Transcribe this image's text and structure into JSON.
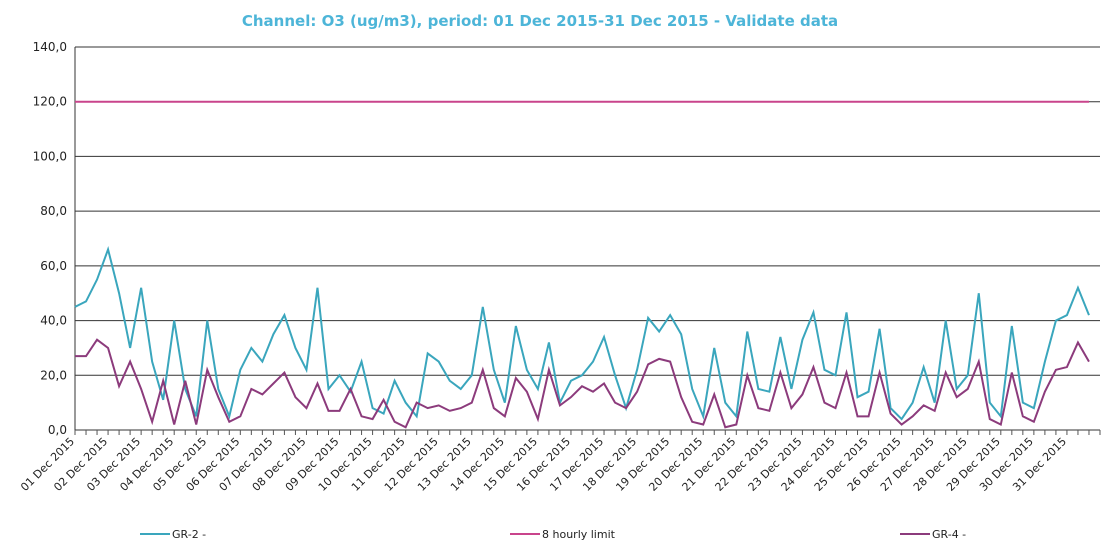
{
  "chart_data": {
    "type": "line",
    "title": "Channel: O3 (ug/m3), period: 01 Dec 2015-31 Dec 2015 - Validate data",
    "categories": [
      "01 Dec 2015",
      null,
      null,
      "02 Dec 2015",
      null,
      null,
      "03 Dec 2015",
      null,
      null,
      "04 Dec 2015",
      null,
      null,
      "05 Dec 2015",
      null,
      null,
      "06 Dec 2015",
      null,
      null,
      "07 Dec 2015",
      null,
      null,
      "08 Dec 2015",
      null,
      null,
      "09 Dec 2015",
      null,
      null,
      "10 Dec 2015",
      null,
      null,
      "11 Dec 2015",
      null,
      null,
      "12 Dec 2015",
      null,
      null,
      "13 Dec 2015",
      null,
      null,
      "14 Dec 2015",
      null,
      null,
      "15 Dec 2015",
      null,
      null,
      "16 Dec 2015",
      null,
      null,
      "17 Dec 2015",
      null,
      null,
      "18 Dec 2015",
      null,
      null,
      "19 Dec 2015",
      null,
      null,
      "20 Dec 2015",
      null,
      null,
      "21 Dec 2015",
      null,
      null,
      "22 Dec 2015",
      null,
      null,
      "23 Dec 2015",
      null,
      null,
      "24 Dec 2015",
      null,
      null,
      "25 Dec 2015",
      null,
      null,
      "26 Dec 2015",
      null,
      null,
      "27 Dec 2015",
      null,
      null,
      "28 Dec 2015",
      null,
      null,
      "29 Dec 2015",
      null,
      null,
      "30 Dec 2015",
      null,
      null,
      "31 Dec 2015",
      null,
      null
    ],
    "series": [
      {
        "name": "GR-2 -",
        "color": "#3aa6bd",
        "values": [
          45,
          47,
          55,
          66,
          50,
          30,
          52,
          25,
          11,
          40,
          15,
          5,
          40,
          15,
          5,
          22,
          30,
          25,
          35,
          42,
          30,
          22,
          52,
          15,
          20,
          14,
          25,
          8,
          6,
          18,
          10,
          5,
          28,
          25,
          18,
          15,
          20,
          45,
          22,
          10,
          38,
          22,
          15,
          32,
          10,
          18,
          20,
          25,
          34,
          20,
          8,
          22,
          41,
          36,
          42,
          35,
          15,
          5,
          30,
          10,
          5,
          36,
          15,
          14,
          34,
          15,
          33,
          43,
          22,
          20,
          43,
          12,
          14,
          37,
          8,
          4,
          10,
          23,
          10,
          40,
          15,
          20,
          50,
          10,
          5,
          38,
          10,
          8,
          25,
          40,
          42,
          52,
          42
        ]
      },
      {
        "name": "8 hourly limit",
        "color": "#c9448c",
        "values": [
          120,
          120,
          120,
          120,
          120,
          120,
          120,
          120,
          120,
          120,
          120,
          120,
          120,
          120,
          120,
          120,
          120,
          120,
          120,
          120,
          120,
          120,
          120,
          120,
          120,
          120,
          120,
          120,
          120,
          120,
          120,
          120,
          120,
          120,
          120,
          120,
          120,
          120,
          120,
          120,
          120,
          120,
          120,
          120,
          120,
          120,
          120,
          120,
          120,
          120,
          120,
          120,
          120,
          120,
          120,
          120,
          120,
          120,
          120,
          120,
          120,
          120,
          120,
          120,
          120,
          120,
          120,
          120,
          120,
          120,
          120,
          120,
          120,
          120,
          120,
          120,
          120,
          120,
          120,
          120,
          120,
          120,
          120,
          120,
          120,
          120,
          120,
          120,
          120,
          120,
          120,
          120,
          120
        ]
      },
      {
        "name": "GR-4 -",
        "color": "#8c3b7c",
        "values": [
          27,
          27,
          33,
          30,
          16,
          25,
          15,
          3,
          18,
          2,
          18,
          2,
          22,
          12,
          3,
          5,
          15,
          13,
          17,
          21,
          12,
          8,
          17,
          7,
          7,
          15,
          5,
          4,
          11,
          3,
          1,
          10,
          8,
          9,
          7,
          8,
          10,
          22,
          8,
          5,
          19,
          14,
          4,
          22,
          9,
          12,
          16,
          14,
          17,
          10,
          8,
          14,
          24,
          26,
          25,
          12,
          3,
          2,
          13,
          1,
          2,
          20,
          8,
          7,
          21,
          8,
          13,
          23,
          10,
          8,
          21,
          5,
          5,
          21,
          6,
          2,
          5,
          9,
          7,
          21,
          12,
          15,
          25,
          4,
          2,
          21,
          5,
          3,
          14,
          22,
          23,
          32,
          25
        ]
      }
    ],
    "ylim": [
      0,
      140
    ],
    "yticks": [
      {
        "value": 0,
        "label": "0,0"
      },
      {
        "value": 20,
        "label": "20,0"
      },
      {
        "value": 40,
        "label": "40,0"
      },
      {
        "value": 60,
        "label": "60,0"
      },
      {
        "value": 80,
        "label": "80,0"
      },
      {
        "value": 100,
        "label": "100,0"
      },
      {
        "value": 120,
        "label": "120,0"
      },
      {
        "value": 140,
        "label": "140,0"
      }
    ],
    "grid": true
  }
}
